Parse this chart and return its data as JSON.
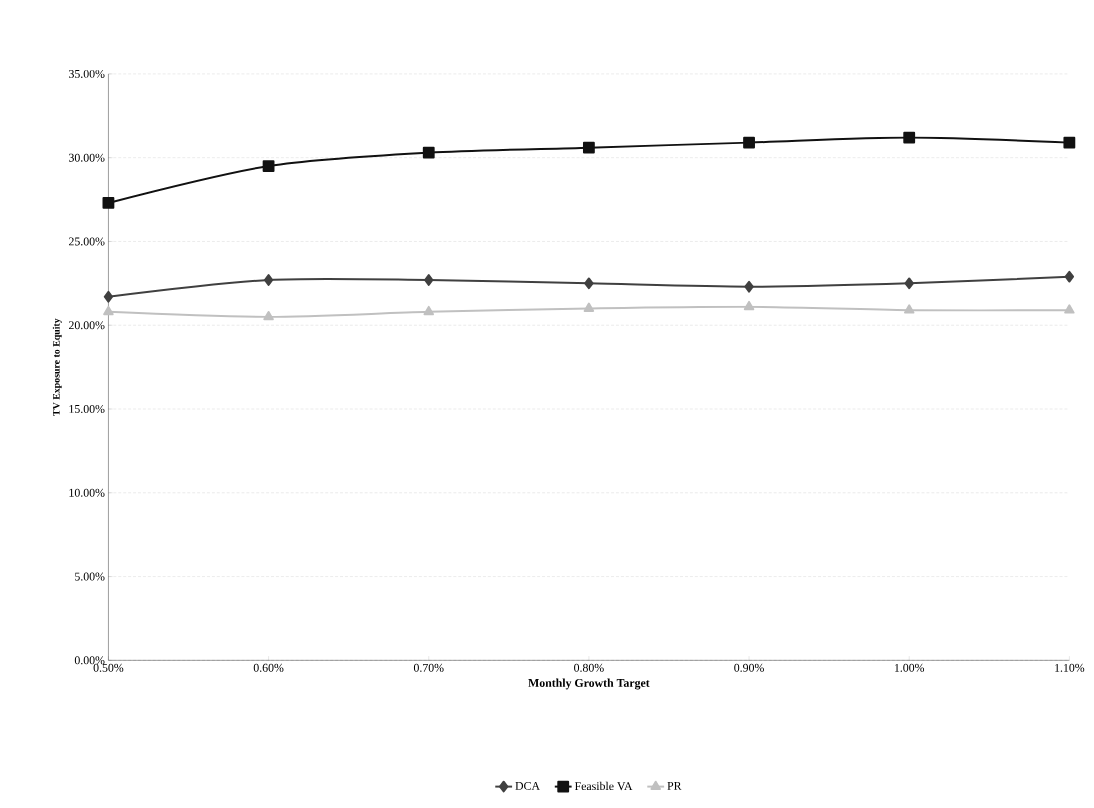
{
  "chart_data": {
    "type": "line",
    "xlabel": "Monthly Growth Target",
    "ylabel": "TV Exposure to Equity",
    "x": [
      0.5,
      0.6,
      0.7,
      0.8,
      0.9,
      1.0,
      1.1
    ],
    "xlim": [
      0.5,
      1.1
    ],
    "xticks": [
      {
        "value": 0.5,
        "label": "0.50%"
      },
      {
        "value": 0.6,
        "label": "0.60%"
      },
      {
        "value": 0.7,
        "label": "0.70%"
      },
      {
        "value": 0.8,
        "label": "0.80%"
      },
      {
        "value": 0.9,
        "label": "0.90%"
      },
      {
        "value": 1.0,
        "label": "1.00%"
      },
      {
        "value": 1.1,
        "label": "1.10%"
      }
    ],
    "ylim": [
      0,
      35
    ],
    "yticks": [
      {
        "value": 0,
        "label": "0.00%"
      },
      {
        "value": 5,
        "label": "5.00%"
      },
      {
        "value": 10,
        "label": "10.00%"
      },
      {
        "value": 15,
        "label": "15.00%"
      },
      {
        "value": 20,
        "label": "20.00%"
      },
      {
        "value": 25,
        "label": "25.00%"
      },
      {
        "value": 30,
        "label": "30.00%"
      },
      {
        "value": 35,
        "label": "35.00%"
      }
    ],
    "grid": "y",
    "legend": "bottom",
    "series": [
      {
        "name": "DCA",
        "color": "#404040",
        "marker": "diamond",
        "values": [
          21.7,
          22.7,
          22.7,
          22.5,
          22.3,
          22.5,
          22.9
        ]
      },
      {
        "name": "Feasible VA",
        "color": "#111111",
        "marker": "square",
        "values": [
          27.3,
          29.5,
          30.3,
          30.6,
          30.9,
          31.2,
          30.9
        ]
      },
      {
        "name": "PR",
        "color": "#c0c0c0",
        "marker": "triangle",
        "values": [
          20.8,
          20.5,
          20.8,
          21.0,
          21.1,
          20.9,
          20.9
        ]
      }
    ]
  }
}
